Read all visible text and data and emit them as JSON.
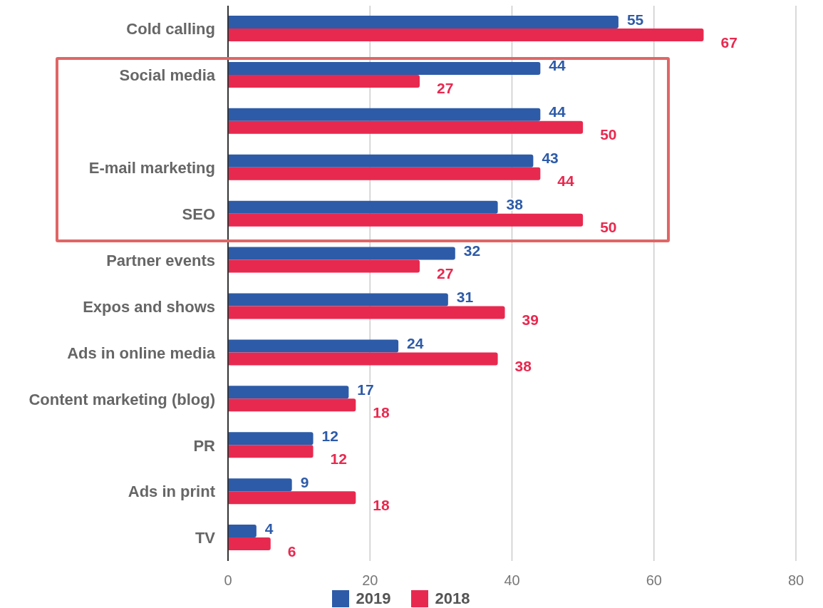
{
  "chart_data": {
    "type": "bar",
    "orientation": "horizontal",
    "categories": [
      "Cold calling",
      "Social media",
      null,
      "E-mail marketing",
      "SEO",
      "Partner events",
      "Expos and shows",
      "Ads in online media",
      "Content marketing (blog)",
      "PR",
      "Ads in print",
      "TV"
    ],
    "series": [
      {
        "name": "2019",
        "color": "#2d5ba8",
        "values": [
          55,
          44,
          44,
          43,
          38,
          32,
          31,
          24,
          17,
          12,
          9,
          4
        ]
      },
      {
        "name": "2018",
        "color": "#e8294f",
        "values": [
          67,
          27,
          50,
          44,
          50,
          27,
          39,
          38,
          18,
          12,
          18,
          6
        ]
      }
    ],
    "xlim": [
      0,
      80
    ],
    "xticks": [
      0,
      20,
      40,
      60,
      80
    ],
    "grid": "x",
    "legend": "bottom",
    "data_labels": true
  }
}
